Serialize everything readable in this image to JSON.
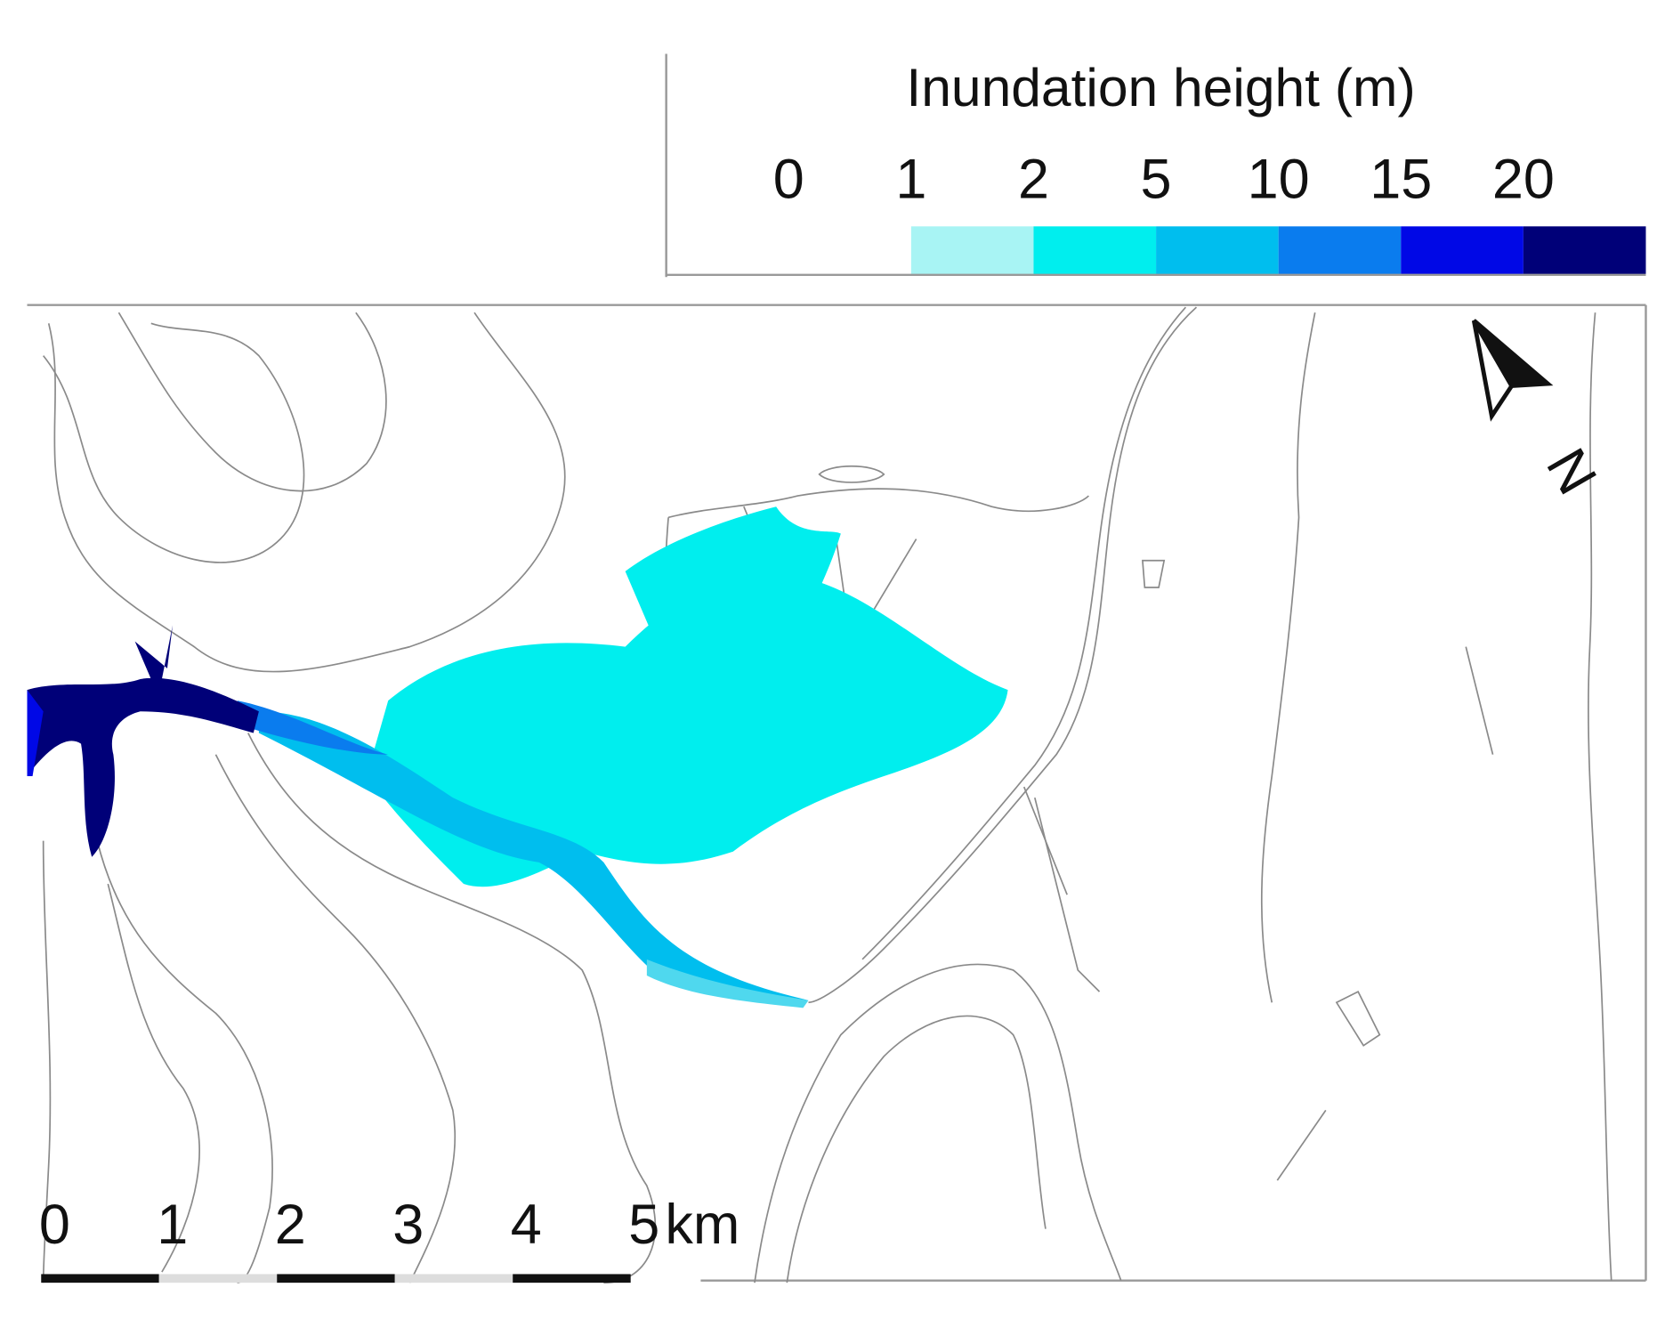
{
  "legend": {
    "title": "Inundation height (m)",
    "ticks": [
      "0",
      "1",
      "2",
      "5",
      "10",
      "15",
      "20"
    ],
    "classes": [
      {
        "color": "#ffffff"
      },
      {
        "color": "#a8f4f4"
      },
      {
        "color": "#00eeee"
      },
      {
        "color": "#00beee"
      },
      {
        "color": "#0a7cee"
      },
      {
        "color": "#0008e6"
      },
      {
        "color": "#000078"
      }
    ]
  },
  "scale_bar": {
    "labels": [
      "0",
      "1",
      "2",
      "3",
      "4",
      "5"
    ],
    "unit": "km",
    "colors": [
      "#111111",
      "#dddddd"
    ]
  },
  "north_arrow": {
    "label": "N"
  }
}
